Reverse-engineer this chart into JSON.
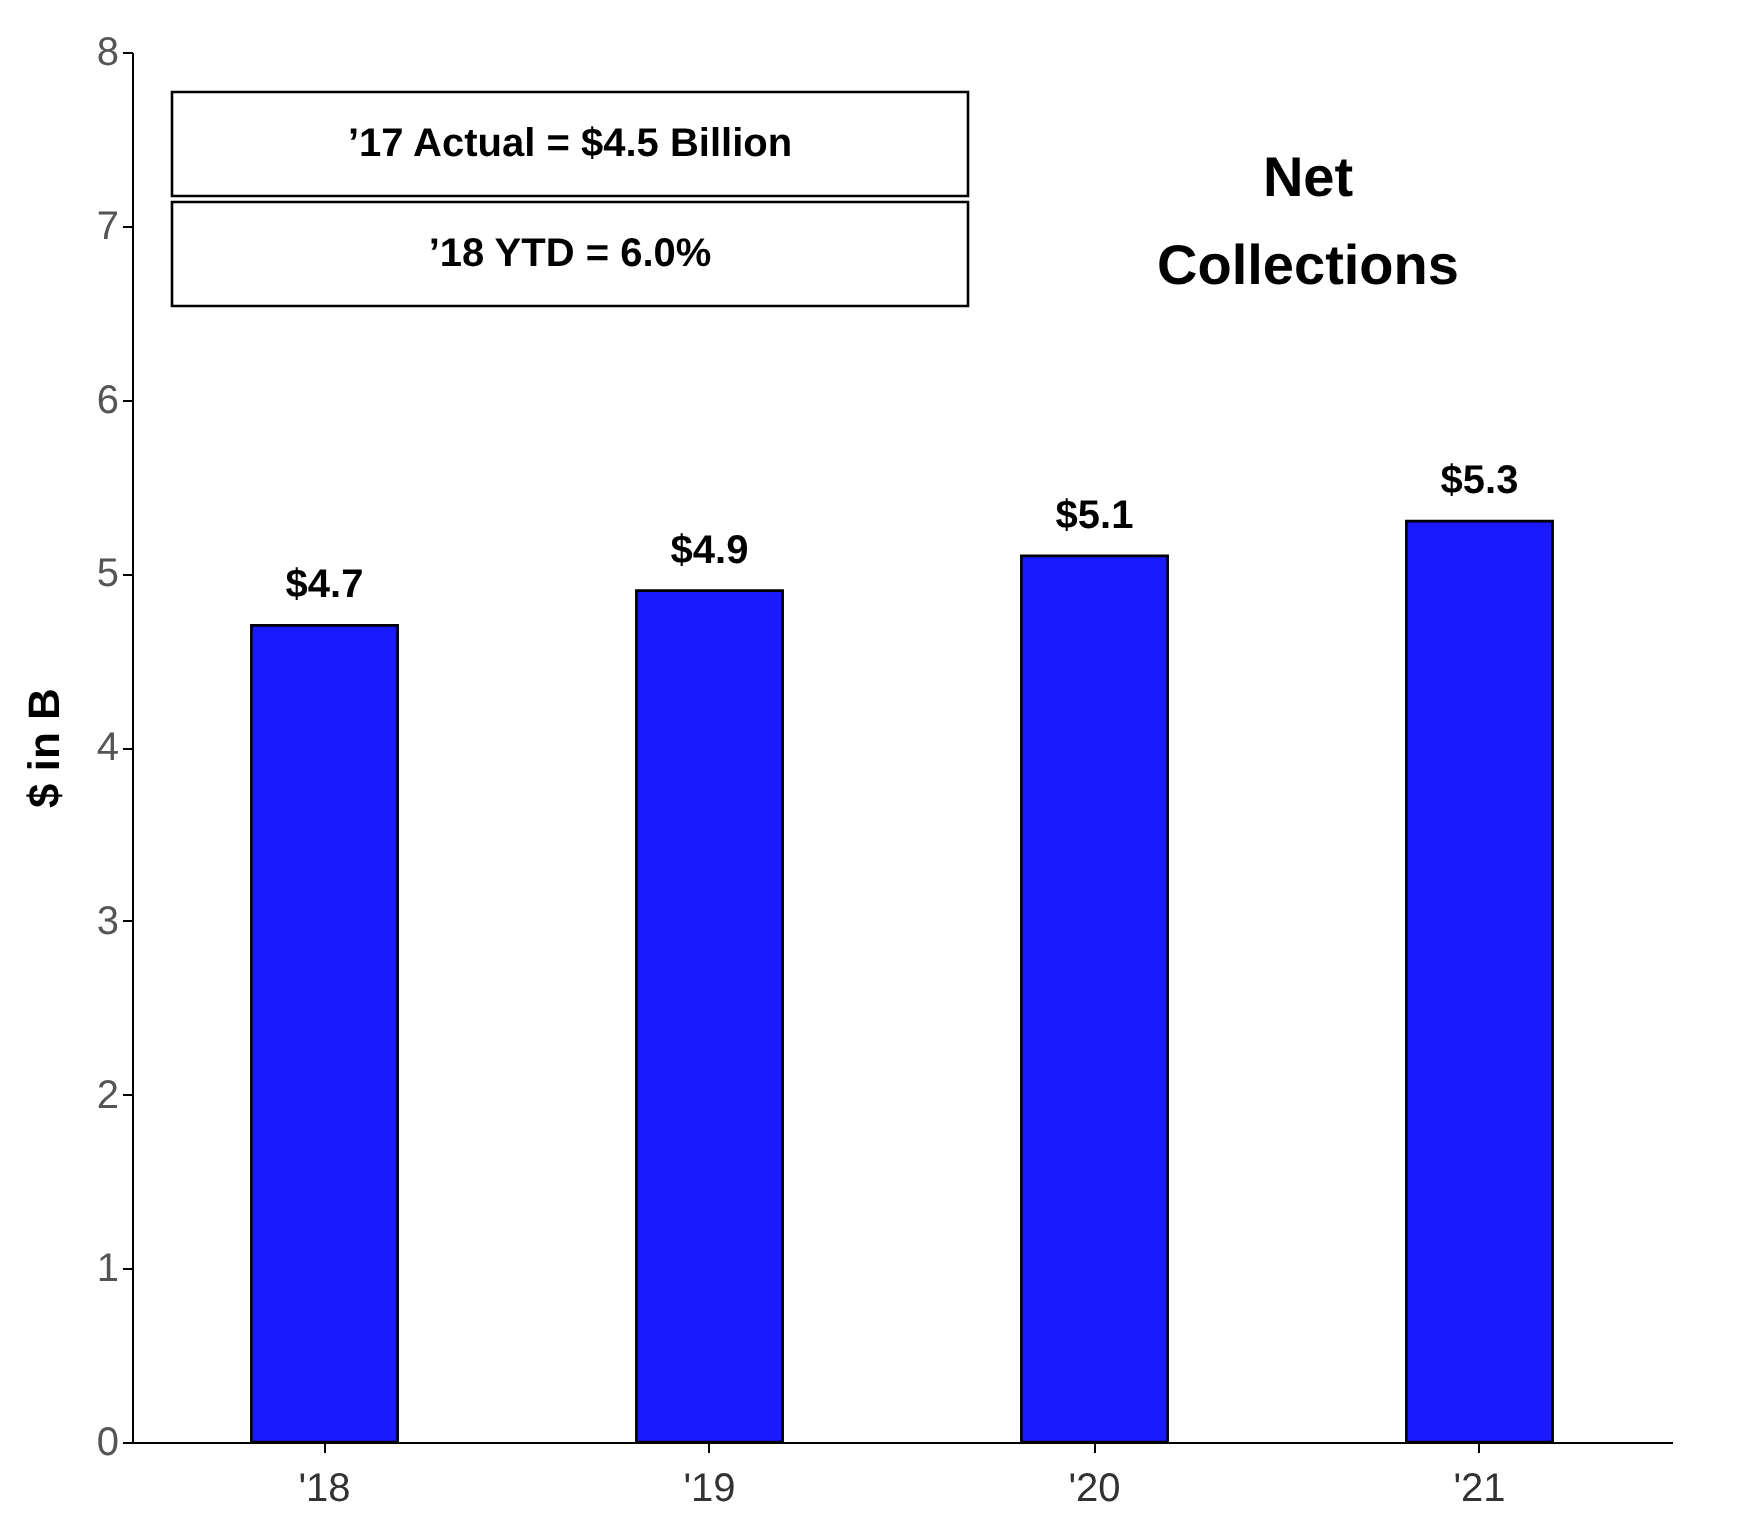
{
  "chart_data": {
    "type": "bar",
    "title": "Net Collections",
    "ylabel": "$ in B",
    "categories": [
      "'18",
      "'19",
      "'20",
      "'21"
    ],
    "values": [
      4.7,
      4.9,
      5.1,
      5.3
    ],
    "value_labels": [
      "$4.7",
      "$4.9",
      "$5.1",
      "$5.3"
    ],
    "color": "#1a1aff",
    "ylim": [
      0,
      8
    ],
    "yticks": [
      0,
      1,
      2,
      3,
      4,
      5,
      6,
      7,
      8
    ],
    "annotations": [
      "’17 Actual = $4.5 Billion",
      "’18 YTD = 6.0%"
    ],
    "grid": false
  }
}
